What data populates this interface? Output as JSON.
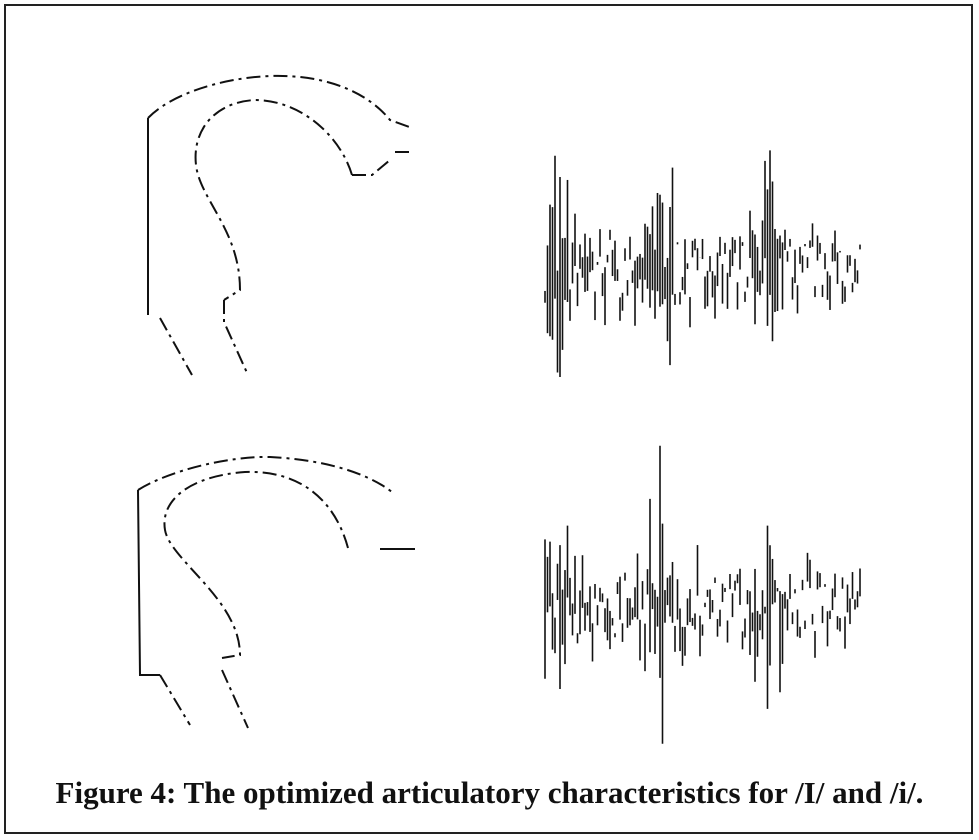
{
  "figure": {
    "caption": "Figure 4: The optimized articulatory characteristics for /I/ and /i/."
  }
}
